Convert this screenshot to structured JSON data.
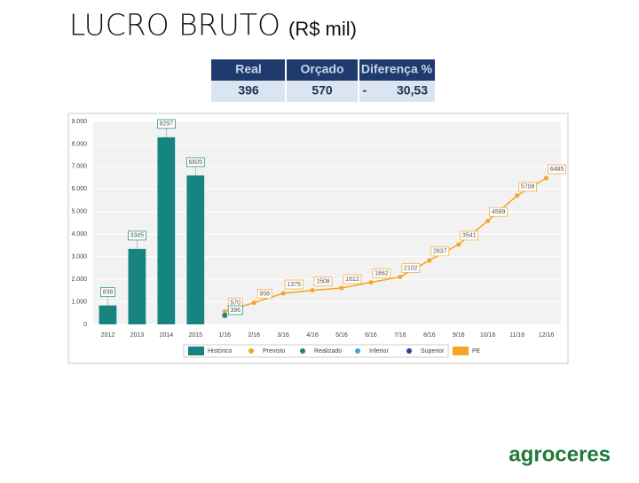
{
  "slide": {
    "title": "LUCRO BRUTO",
    "unit": "(R$ mil)",
    "table": {
      "header": [
        "Real",
        "Orçado",
        "Diferença %"
      ],
      "rows": [
        [
          "396",
          "570",
          "-",
          "30,53"
        ]
      ]
    },
    "logo": "agroceres"
  },
  "chart_data": {
    "type": "combo",
    "categories": [
      "2012",
      "2013",
      "2014",
      "2015",
      "1/16",
      "2/16",
      "3/16",
      "4/16",
      "5/16",
      "6/16",
      "7/16",
      "8/16",
      "9/16",
      "10/16",
      "11/16",
      "12/16"
    ],
    "ylim": [
      0,
      9000
    ],
    "yticks": [
      0,
      {
        "value": 1000,
        "label": "1.000"
      },
      {
        "value": 2000,
        "label": "2.000"
      },
      {
        "value": 3000,
        "label": "3.000"
      },
      {
        "value": 4000,
        "label": "4.000"
      },
      {
        "value": 5000,
        "label": "5.000"
      },
      {
        "value": 6000,
        "label": "6.000"
      },
      {
        "value": 7000,
        "label": "7.000"
      },
      {
        "value": 8000,
        "label": "8.000"
      },
      {
        "value": 9000,
        "label": "9.000"
      }
    ],
    "grid": true,
    "series": [
      {
        "name": "Histórico",
        "type": "bar",
        "color": "#16857f",
        "values": [
          838,
          3345,
          8297,
          6605,
          null,
          null,
          null,
          null,
          null,
          null,
          null,
          null,
          null,
          null,
          null,
          null
        ]
      },
      {
        "name": "Previsto",
        "type": "line",
        "color": "#f5a623",
        "values": [
          null,
          null,
          null,
          null,
          570,
          958,
          1375,
          1508,
          1612,
          1862,
          2102,
          2837,
          3541,
          4589,
          5708,
          6485
        ]
      },
      {
        "name": "Realizado",
        "type": "scatter",
        "color": "#16857f",
        "values": [
          null,
          null,
          null,
          null,
          396,
          null,
          null,
          null,
          null,
          null,
          null,
          null,
          null,
          null,
          null,
          null
        ]
      },
      {
        "name": "Inferior",
        "type": "scatter",
        "color": "#3aa6d8",
        "values": [
          null,
          null,
          null,
          null,
          null,
          null,
          null,
          null,
          null,
          null,
          null,
          null,
          null,
          null,
          null,
          null
        ]
      },
      {
        "name": "Superior",
        "type": "scatter",
        "color": "#2a3e9e",
        "values": [
          null,
          null,
          null,
          null,
          null,
          null,
          null,
          null,
          null,
          null,
          null,
          null,
          null,
          null,
          null,
          null
        ]
      },
      {
        "name": "PE",
        "type": "band",
        "color": "#f5a623",
        "values": [
          null,
          null,
          null,
          null,
          null,
          null,
          null,
          null,
          null,
          null,
          null,
          null,
          null,
          null,
          null,
          null
        ]
      }
    ]
  }
}
